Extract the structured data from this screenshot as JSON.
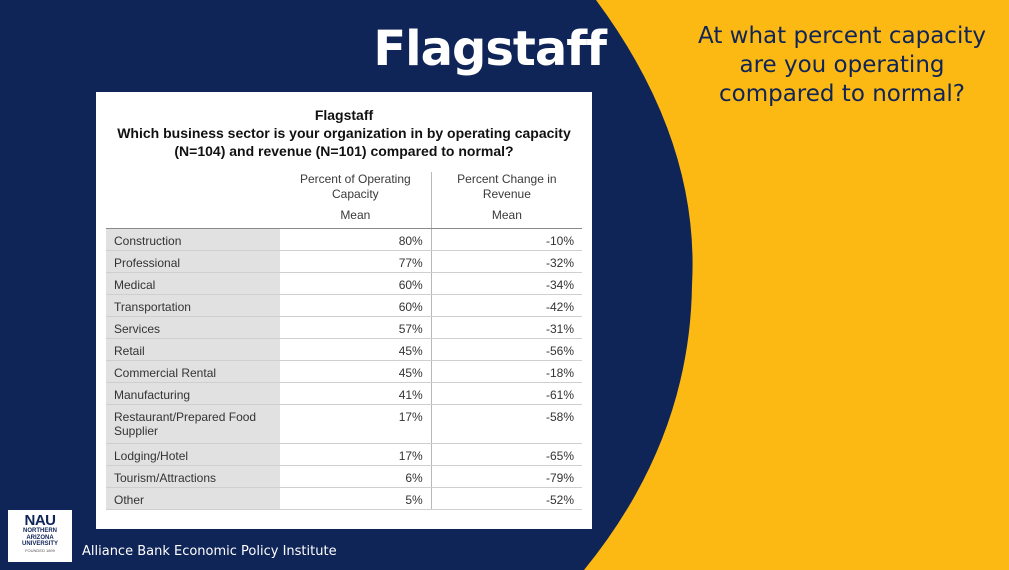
{
  "slide": {
    "title": "Flagstaff",
    "question": "At what percent capacity are you operating compared to normal?",
    "colors": {
      "navy": "#0F2457",
      "gold": "#FDB913"
    }
  },
  "table": {
    "title": "Flagstaff",
    "subtitle": "Which business sector is your organization in by operating capacity (N=104) and revenue (N=101) compared to normal?",
    "col1_header": "Percent of Operating Capacity",
    "col2_header": "Percent Change in Revenue",
    "col1_stat": "Mean",
    "col2_stat": "Mean",
    "rows": [
      {
        "label": "Construction",
        "capacity": "80%",
        "revenue": "-10%"
      },
      {
        "label": "Professional",
        "capacity": "77%",
        "revenue": "-32%"
      },
      {
        "label": "Medical",
        "capacity": "60%",
        "revenue": "-34%"
      },
      {
        "label": "Transportation",
        "capacity": "60%",
        "revenue": "-42%"
      },
      {
        "label": "Services",
        "capacity": "57%",
        "revenue": "-31%"
      },
      {
        "label": "Retail",
        "capacity": "45%",
        "revenue": "-56%"
      },
      {
        "label": "Commercial Rental",
        "capacity": "45%",
        "revenue": "-18%"
      },
      {
        "label": "Manufacturing",
        "capacity": "41%",
        "revenue": "-61%"
      },
      {
        "label": "Restaurant/Prepared Food Supplier",
        "capacity": "17%",
        "revenue": "-58%"
      },
      {
        "label": "Lodging/Hotel",
        "capacity": "17%",
        "revenue": "-65%"
      },
      {
        "label": "Tourism/Attractions",
        "capacity": "6%",
        "revenue": "-79%"
      },
      {
        "label": "Other",
        "capacity": "5%",
        "revenue": "-52%"
      }
    ]
  },
  "logo": {
    "mark": "NAU",
    "line1": "NORTHERN",
    "line2": "ARIZONA",
    "line3": "UNIVERSITY",
    "founded": "FOUNDED 1899"
  },
  "footer": {
    "text": "Alliance Bank Economic Policy Institute"
  }
}
